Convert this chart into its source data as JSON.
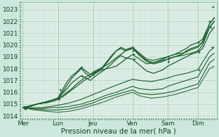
{
  "xlabel": "Pression niveau de la mer( hPa )",
  "bg_color": "#cce8dc",
  "plot_bg_color": "#dff0e8",
  "grid_color_major": "#aaccbb",
  "grid_color_minor": "#c4ddd3",
  "line_color": "#1a5c2a",
  "ylim": [
    1013.8,
    1023.6
  ],
  "yticks": [
    1014,
    1015,
    1016,
    1017,
    1018,
    1019,
    1020,
    1021,
    1022,
    1023
  ],
  "xtick_labels": [
    "Mer",
    "Lun",
    "Jeu",
    "Ven",
    "Sam",
    "Dim"
  ],
  "xtick_positions": [
    0.0,
    1.5,
    3.0,
    4.7,
    6.2,
    7.5
  ],
  "xlim": [
    -0.1,
    8.3
  ],
  "font_size": 6.5,
  "xlabel_fontsize": 7.5,
  "lines": [
    {
      "x": [
        0,
        0.2,
        0.4,
        0.6,
        0.8,
        1.0,
        1.2,
        1.4,
        1.5,
        1.7,
        1.9,
        2.1,
        2.3,
        2.5,
        2.7,
        2.9,
        3.0,
        3.2,
        3.4,
        3.6,
        3.8,
        4.0,
        4.2,
        4.4,
        4.7,
        5.0,
        5.3,
        5.6,
        6.0,
        6.2,
        6.5,
        6.8,
        7.0,
        7.2,
        7.5,
        7.7,
        8.0,
        8.2
      ],
      "y": [
        1014.7,
        1014.8,
        1014.9,
        1015.0,
        1015.1,
        1015.1,
        1015.2,
        1015.3,
        1015.4,
        1015.6,
        1015.9,
        1016.2,
        1016.5,
        1016.8,
        1017.1,
        1017.3,
        1017.5,
        1017.7,
        1017.9,
        1018.0,
        1018.1,
        1018.2,
        1018.5,
        1018.8,
        1019.2,
        1018.8,
        1018.4,
        1018.5,
        1018.7,
        1018.8,
        1019.0,
        1019.1,
        1019.2,
        1019.3,
        1019.5,
        1020.0,
        1021.5,
        1022.0
      ],
      "lw": 0.9,
      "marker": true
    },
    {
      "x": [
        0,
        0.2,
        0.4,
        0.6,
        0.8,
        1.0,
        1.2,
        1.4,
        1.5,
        1.7,
        1.9,
        2.1,
        2.3,
        2.5,
        2.7,
        2.9,
        3.0,
        3.2,
        3.4,
        3.6,
        3.8,
        4.0,
        4.2,
        4.4,
        4.7,
        5.0,
        5.3,
        5.6,
        6.0,
        6.2,
        6.5,
        6.8,
        7.0,
        7.2,
        7.5,
        7.7,
        8.0,
        8.2
      ],
      "y": [
        1014.7,
        1014.8,
        1014.9,
        1015.0,
        1015.1,
        1015.2,
        1015.3,
        1015.4,
        1015.5,
        1015.7,
        1016.0,
        1016.3,
        1016.7,
        1017.0,
        1017.3,
        1017.5,
        1017.7,
        1017.9,
        1018.1,
        1018.3,
        1018.6,
        1018.9,
        1019.2,
        1019.5,
        1019.8,
        1019.3,
        1018.8,
        1018.7,
        1018.9,
        1019.0,
        1019.2,
        1019.3,
        1019.4,
        1019.6,
        1019.8,
        1020.3,
        1021.8,
        1022.3
      ],
      "lw": 0.9,
      "marker": true
    },
    {
      "x": [
        0,
        0.3,
        0.6,
        0.9,
        1.2,
        1.5,
        1.7,
        1.9,
        2.1,
        2.3,
        2.5,
        2.7,
        2.9,
        3.0,
        3.2,
        3.4,
        3.6,
        3.8,
        4.0,
        4.2,
        4.4,
        4.7,
        5.0,
        5.3,
        5.6,
        6.0,
        6.2,
        6.5,
        6.8,
        7.0,
        7.2,
        7.5,
        7.7,
        8.0,
        8.2
      ],
      "y": [
        1014.7,
        1014.8,
        1015.0,
        1015.1,
        1015.3,
        1015.5,
        1016.2,
        1016.9,
        1017.4,
        1017.7,
        1018.1,
        1017.8,
        1017.5,
        1017.6,
        1017.8,
        1018.0,
        1018.5,
        1019.0,
        1019.5,
        1019.8,
        1019.6,
        1019.8,
        1019.2,
        1018.7,
        1018.5,
        1018.8,
        1019.0,
        1019.2,
        1019.5,
        1019.7,
        1020.0,
        1020.2,
        1020.5,
        1021.8,
        1022.3
      ],
      "lw": 0.9,
      "marker": true
    },
    {
      "x": [
        0,
        0.3,
        0.6,
        0.9,
        1.2,
        1.5,
        1.7,
        1.9,
        2.1,
        2.3,
        2.5,
        2.7,
        2.9,
        3.0,
        3.2,
        3.4,
        3.6,
        3.8,
        4.0,
        4.2,
        4.4,
        4.7,
        5.0,
        5.3,
        5.6,
        6.0,
        6.2,
        6.5,
        6.8,
        7.0,
        7.2,
        7.5,
        7.7,
        8.0,
        8.2
      ],
      "y": [
        1014.7,
        1014.8,
        1015.0,
        1015.1,
        1015.3,
        1015.5,
        1016.0,
        1016.6,
        1017.2,
        1017.6,
        1018.0,
        1017.6,
        1017.3,
        1017.5,
        1017.8,
        1018.1,
        1018.6,
        1019.1,
        1019.5,
        1019.7,
        1019.5,
        1019.7,
        1019.1,
        1018.6,
        1018.4,
        1018.6,
        1018.8,
        1019.0,
        1019.2,
        1019.5,
        1019.7,
        1019.9,
        1020.2,
        1021.5,
        1022.0
      ],
      "lw": 0.9,
      "marker": true
    },
    {
      "x": [
        0,
        0.3,
        0.6,
        0.9,
        1.2,
        1.5,
        1.7,
        1.9,
        2.1,
        2.3,
        2.5,
        2.7,
        2.9,
        3.0,
        3.2,
        3.5,
        3.8,
        4.0,
        4.2,
        4.4,
        4.7,
        5.0,
        5.3,
        5.6,
        6.0,
        6.2,
        6.5,
        6.8,
        7.0,
        7.2,
        7.5,
        7.7,
        8.0,
        8.2
      ],
      "y": [
        1014.7,
        1014.8,
        1015.0,
        1015.1,
        1015.3,
        1015.5,
        1015.9,
        1016.3,
        1016.8,
        1017.1,
        1017.4,
        1017.2,
        1017.0,
        1017.2,
        1017.5,
        1017.9,
        1018.4,
        1018.8,
        1019.1,
        1018.9,
        1018.8,
        1018.3,
        1017.8,
        1017.6,
        1017.9,
        1018.2,
        1018.5,
        1018.8,
        1019.0,
        1019.2,
        1019.4,
        1019.7,
        1021.0,
        1021.5
      ],
      "lw": 0.9,
      "marker": true
    },
    {
      "x": [
        0,
        0.4,
        0.8,
        1.2,
        1.5,
        2.0,
        2.5,
        3.0,
        3.5,
        4.0,
        4.7,
        5.0,
        5.5,
        6.0,
        6.2,
        6.5,
        7.0,
        7.5,
        8.0,
        8.2
      ],
      "y": [
        1014.7,
        1014.7,
        1014.7,
        1014.8,
        1014.9,
        1015.1,
        1015.4,
        1015.8,
        1016.2,
        1016.6,
        1017.1,
        1017.0,
        1016.9,
        1017.1,
        1017.2,
        1017.4,
        1017.6,
        1017.9,
        1019.5,
        1019.8
      ],
      "lw": 0.8,
      "marker": false
    },
    {
      "x": [
        0,
        0.4,
        0.8,
        1.2,
        1.5,
        2.0,
        2.5,
        3.0,
        3.5,
        4.0,
        4.7,
        5.0,
        5.5,
        6.0,
        6.2,
        6.5,
        7.0,
        7.5,
        8.0,
        8.2
      ],
      "y": [
        1014.7,
        1014.6,
        1014.6,
        1014.7,
        1014.7,
        1014.8,
        1015.0,
        1015.3,
        1015.7,
        1016.0,
        1016.5,
        1016.3,
        1016.2,
        1016.3,
        1016.5,
        1016.7,
        1017.0,
        1017.3,
        1019.0,
        1019.3
      ],
      "lw": 0.8,
      "marker": false
    },
    {
      "x": [
        0,
        0.5,
        1.0,
        1.5,
        2.0,
        2.5,
        3.0,
        3.5,
        4.0,
        4.7,
        5.0,
        5.5,
        6.0,
        6.5,
        7.0,
        7.5,
        8.0,
        8.2
      ],
      "y": [
        1014.7,
        1014.6,
        1014.5,
        1014.5,
        1014.6,
        1014.8,
        1015.1,
        1015.5,
        1015.8,
        1016.2,
        1015.9,
        1015.8,
        1015.9,
        1016.1,
        1016.4,
        1016.7,
        1018.5,
        1018.8
      ],
      "lw": 0.8,
      "marker": false
    },
    {
      "x": [
        0,
        0.5,
        1.0,
        1.5,
        2.0,
        2.5,
        3.0,
        3.5,
        4.0,
        4.7,
        5.0,
        5.5,
        6.0,
        6.5,
        7.0,
        7.5,
        8.0,
        8.2
      ],
      "y": [
        1014.7,
        1014.5,
        1014.4,
        1014.3,
        1014.4,
        1014.6,
        1014.9,
        1015.2,
        1015.6,
        1016.0,
        1015.7,
        1015.5,
        1015.6,
        1015.8,
        1016.1,
        1016.4,
        1018.0,
        1018.2
      ],
      "lw": 0.7,
      "marker": false
    }
  ],
  "markers": [
    [
      0.05,
      1014.75
    ],
    [
      0.08,
      1014.65
    ],
    [
      0.12,
      1014.6
    ],
    [
      1.5,
      1015.5
    ],
    [
      1.55,
      1015.4
    ],
    [
      1.6,
      1016.2
    ],
    [
      2.5,
      1018.1
    ],
    [
      2.55,
      1017.4
    ],
    [
      3.0,
      1017.5
    ],
    [
      3.05,
      1017.6
    ],
    [
      3.1,
      1017.7
    ],
    [
      4.7,
      1019.8
    ],
    [
      4.72,
      1019.5
    ],
    [
      4.74,
      1019.2
    ],
    [
      4.76,
      1018.8
    ],
    [
      6.2,
      1019.0
    ],
    [
      6.22,
      1018.8
    ],
    [
      6.24,
      1018.6
    ],
    [
      7.5,
      1019.5
    ],
    [
      7.52,
      1020.2
    ],
    [
      7.54,
      1019.4
    ],
    [
      7.56,
      1017.9
    ],
    [
      8.0,
      1022.0
    ],
    [
      8.05,
      1021.5
    ],
    [
      8.1,
      1019.8
    ],
    [
      8.15,
      1023.2
    ]
  ]
}
